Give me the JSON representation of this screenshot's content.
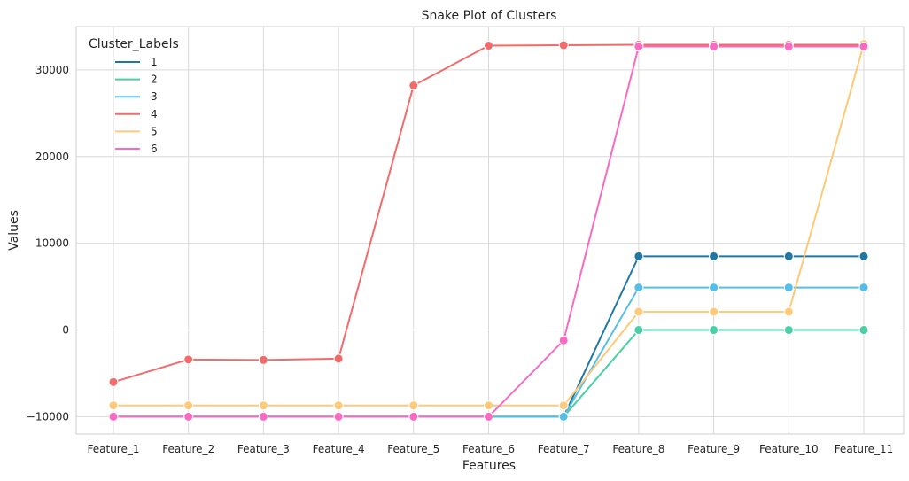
{
  "chart_data": {
    "type": "line",
    "title": "Snake Plot of Clusters",
    "xlabel": "Features",
    "ylabel": "Values",
    "categories": [
      "Feature_1",
      "Feature_2",
      "Feature_3",
      "Feature_4",
      "Feature_5",
      "Feature_6",
      "Feature_7",
      "Feature_8",
      "Feature_9",
      "Feature_10",
      "Feature_11"
    ],
    "ylim": [
      -12000,
      35000
    ],
    "yticks": [
      -10000,
      0,
      10000,
      20000,
      30000
    ],
    "ytick_labels": [
      "−10000",
      "0",
      "10000",
      "20000",
      "30000"
    ],
    "grid": true,
    "legend": {
      "title": "Cluster_Labels",
      "position": "top-left"
    },
    "series": [
      {
        "name": "1",
        "color": "#1f77a4",
        "values": [
          -10000,
          -10000,
          -10000,
          -10000,
          -10000,
          -10000,
          -10000,
          8500,
          8500,
          8500,
          8500
        ]
      },
      {
        "name": "2",
        "color": "#48cfa6",
        "values": [
          -10000,
          -10000,
          -10000,
          -10000,
          -10000,
          -10000,
          -10000,
          0,
          0,
          0,
          0
        ]
      },
      {
        "name": "3",
        "color": "#56bde6",
        "values": [
          -10000,
          -10000,
          -10000,
          -10000,
          -10000,
          -10000,
          -10000,
          4900,
          4900,
          4900,
          4900
        ]
      },
      {
        "name": "4",
        "color": "#f26b6b",
        "values": [
          -6000,
          -3400,
          -3450,
          -3300,
          28200,
          32800,
          32850,
          32900,
          32900,
          32900,
          32900
        ]
      },
      {
        "name": "5",
        "color": "#fec978",
        "values": [
          -8700,
          -8700,
          -8700,
          -8700,
          -8700,
          -8700,
          -8700,
          2100,
          2100,
          2100,
          33000
        ]
      },
      {
        "name": "6",
        "color": "#f76bc2",
        "values": [
          -10000,
          -10000,
          -10000,
          -10000,
          -10000,
          -10000,
          -1200,
          32700,
          32700,
          32700,
          32700
        ]
      }
    ]
  }
}
